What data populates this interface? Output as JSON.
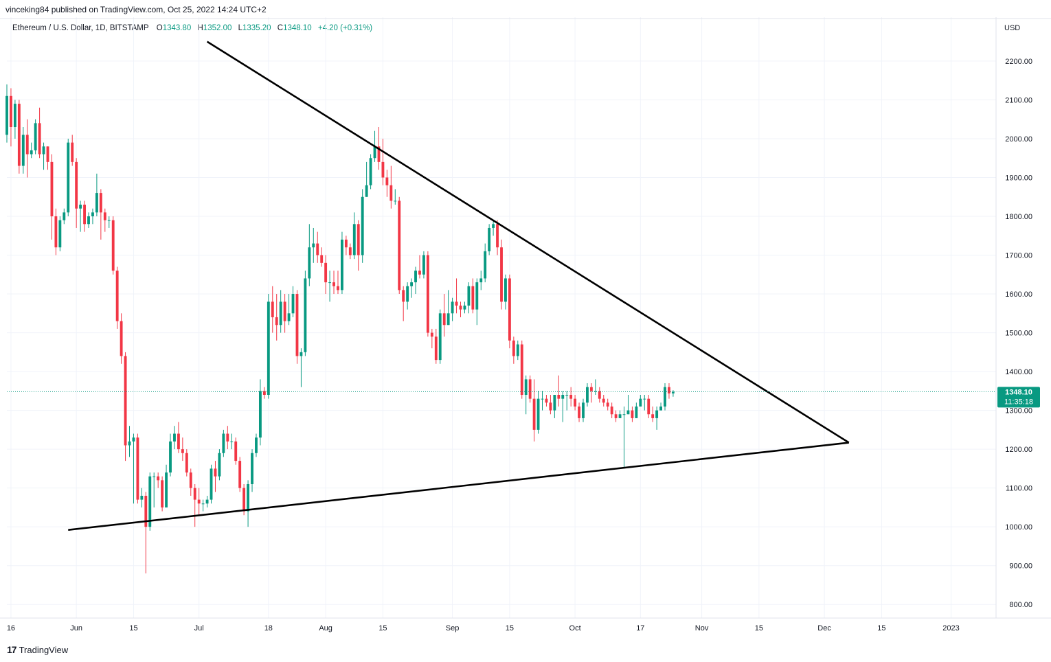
{
  "header": {
    "published_by": "vinceking84 published on TradingView.com, Oct 25, 2022 14:24 UTC+2",
    "symbol": "Ethereum / U.S. Dollar, 1D, BITSTAMP",
    "open_label": "O",
    "open": "1343.80",
    "high_label": "H",
    "high": "1352.00",
    "low_label": "L",
    "low": "1335.20",
    "close_label": "C",
    "close": "1348.10",
    "change": "+4.20 (+0.31%)",
    "currency": "USD"
  },
  "branding": {
    "logo": "17",
    "name": "TradingView"
  },
  "price_marker": {
    "price": "1348.10",
    "countdown": "11:35:18"
  },
  "colors": {
    "up": "#089981",
    "down": "#f23645",
    "trendline": "#000000",
    "grid": "#f0f3fa",
    "axis_text": "#131722"
  },
  "chart_data": {
    "type": "candlestick",
    "y_axis": {
      "ticks": [
        800,
        900,
        1000,
        1100,
        1200,
        1300,
        1400,
        1500,
        1600,
        1700,
        1800,
        1900,
        2000,
        2100,
        2200
      ],
      "ylim": [
        765,
        2260
      ]
    },
    "x_axis": {
      "ticks": [
        {
          "label": "16",
          "date": "2022-05-16"
        },
        {
          "label": "Jun",
          "date": "2022-06-01"
        },
        {
          "label": "15",
          "date": "2022-06-15"
        },
        {
          "label": "Jul",
          "date": "2022-07-01"
        },
        {
          "label": "18",
          "date": "2022-07-18"
        },
        {
          "label": "Aug",
          "date": "2022-08-01"
        },
        {
          "label": "15",
          "date": "2022-08-15"
        },
        {
          "label": "Sep",
          "date": "2022-09-01"
        },
        {
          "label": "15",
          "date": "2022-09-15"
        },
        {
          "label": "Oct",
          "date": "2022-10-01"
        },
        {
          "label": "17",
          "date": "2022-10-17"
        },
        {
          "label": "Nov",
          "date": "2022-11-01"
        },
        {
          "label": "15",
          "date": "2022-11-15"
        },
        {
          "label": "Dec",
          "date": "2022-12-01"
        },
        {
          "label": "15",
          "date": "2022-12-15"
        },
        {
          "label": "2023",
          "date": "2023-01-01"
        }
      ],
      "range": [
        "2022-05-15",
        "2023-01-12"
      ]
    },
    "candles": [
      [
        "2022-05-15",
        2010,
        2110,
        2140,
        1990
      ],
      [
        "2022-05-16",
        2110,
        2030,
        2130,
        1980
      ],
      [
        "2022-05-17",
        2030,
        2090,
        2100,
        2000
      ],
      [
        "2022-05-18",
        2090,
        1930,
        2100,
        1910
      ],
      [
        "2022-05-19",
        1930,
        2010,
        2030,
        1910
      ],
      [
        "2022-05-20",
        2010,
        1960,
        2050,
        1900
      ],
      [
        "2022-05-21",
        1960,
        1970,
        1990,
        1950
      ],
      [
        "2022-05-22",
        1970,
        2040,
        2050,
        1960
      ],
      [
        "2022-05-23",
        2040,
        1960,
        2080,
        1950
      ],
      [
        "2022-05-24",
        1960,
        1980,
        1990,
        1920
      ],
      [
        "2022-05-25",
        1980,
        1940,
        1980,
        1920
      ],
      [
        "2022-05-26",
        1940,
        1800,
        1960,
        1740
      ],
      [
        "2022-05-27",
        1800,
        1720,
        1820,
        1700
      ],
      [
        "2022-05-28",
        1720,
        1790,
        1800,
        1710
      ],
      [
        "2022-05-29",
        1790,
        1810,
        1820,
        1780
      ],
      [
        "2022-05-30",
        1810,
        1990,
        2000,
        1800
      ],
      [
        "2022-05-31",
        1990,
        1940,
        2010,
        1930
      ],
      [
        "2022-06-01",
        1940,
        1820,
        1950,
        1770
      ],
      [
        "2022-06-02",
        1820,
        1830,
        1840,
        1760
      ],
      [
        "2022-06-03",
        1830,
        1780,
        1840,
        1760
      ],
      [
        "2022-06-04",
        1780,
        1800,
        1810,
        1770
      ],
      [
        "2022-06-05",
        1800,
        1810,
        1820,
        1780
      ],
      [
        "2022-06-06",
        1810,
        1860,
        1910,
        1800
      ],
      [
        "2022-06-07",
        1860,
        1810,
        1870,
        1740
      ],
      [
        "2022-06-08",
        1810,
        1790,
        1820,
        1760
      ],
      [
        "2022-06-09",
        1790,
        1790,
        1800,
        1770
      ],
      [
        "2022-06-10",
        1790,
        1660,
        1800,
        1650
      ],
      [
        "2022-06-11",
        1660,
        1530,
        1670,
        1510
      ],
      [
        "2022-06-12",
        1530,
        1440,
        1550,
        1420
      ],
      [
        "2022-06-13",
        1440,
        1210,
        1450,
        1170
      ],
      [
        "2022-06-14",
        1210,
        1220,
        1260,
        1180
      ],
      [
        "2022-06-15",
        1220,
        1230,
        1240,
        1060
      ],
      [
        "2022-06-16",
        1230,
        1070,
        1240,
        1060
      ],
      [
        "2022-06-17",
        1070,
        1080,
        1100,
        1050
      ],
      [
        "2022-06-18",
        1080,
        1000,
        1090,
        880
      ],
      [
        "2022-06-19",
        1000,
        1130,
        1140,
        990
      ],
      [
        "2022-06-20",
        1130,
        1130,
        1140,
        1050
      ],
      [
        "2022-06-21",
        1130,
        1120,
        1140,
        1100
      ],
      [
        "2022-06-22",
        1120,
        1050,
        1130,
        1040
      ],
      [
        "2022-06-23",
        1050,
        1140,
        1160,
        1050
      ],
      [
        "2022-06-24",
        1140,
        1220,
        1240,
        1130
      ],
      [
        "2022-06-25",
        1220,
        1240,
        1260,
        1200
      ],
      [
        "2022-06-26",
        1240,
        1200,
        1270,
        1190
      ],
      [
        "2022-06-27",
        1200,
        1190,
        1230,
        1170
      ],
      [
        "2022-06-28",
        1190,
        1140,
        1200,
        1130
      ],
      [
        "2022-06-29",
        1140,
        1100,
        1150,
        1080
      ],
      [
        "2022-06-30",
        1100,
        1070,
        1110,
        1000
      ],
      [
        "2022-07-01",
        1070,
        1060,
        1100,
        1030
      ],
      [
        "2022-07-02",
        1060,
        1060,
        1070,
        1040
      ],
      [
        "2022-07-03",
        1060,
        1070,
        1080,
        1050
      ],
      [
        "2022-07-04",
        1070,
        1150,
        1160,
        1060
      ],
      [
        "2022-07-05",
        1150,
        1130,
        1170,
        1090
      ],
      [
        "2022-07-06",
        1130,
        1190,
        1200,
        1120
      ],
      [
        "2022-07-07",
        1190,
        1240,
        1250,
        1180
      ],
      [
        "2022-07-08",
        1240,
        1220,
        1260,
        1200
      ],
      [
        "2022-07-09",
        1220,
        1220,
        1240,
        1200
      ],
      [
        "2022-07-10",
        1220,
        1170,
        1230,
        1160
      ],
      [
        "2022-07-11",
        1170,
        1100,
        1180,
        1090
      ],
      [
        "2022-07-12",
        1100,
        1040,
        1110,
        1030
      ],
      [
        "2022-07-13",
        1040,
        1110,
        1120,
        1000
      ],
      [
        "2022-07-14",
        1110,
        1190,
        1200,
        1090
      ],
      [
        "2022-07-15",
        1190,
        1230,
        1240,
        1180
      ],
      [
        "2022-07-16",
        1230,
        1350,
        1380,
        1210
      ],
      [
        "2022-07-17",
        1350,
        1340,
        1360,
        1330
      ],
      [
        "2022-07-18",
        1340,
        1580,
        1600,
        1330
      ],
      [
        "2022-07-19",
        1580,
        1540,
        1620,
        1500
      ],
      [
        "2022-07-20",
        1540,
        1520,
        1600,
        1480
      ],
      [
        "2022-07-21",
        1520,
        1580,
        1610,
        1500
      ],
      [
        "2022-07-22",
        1580,
        1530,
        1600,
        1500
      ],
      [
        "2022-07-23",
        1530,
        1550,
        1600,
        1520
      ],
      [
        "2022-07-24",
        1550,
        1600,
        1620,
        1540
      ],
      [
        "2022-07-25",
        1600,
        1440,
        1610,
        1420
      ],
      [
        "2022-07-26",
        1440,
        1450,
        1460,
        1360
      ],
      [
        "2022-07-27",
        1450,
        1640,
        1660,
        1440
      ],
      [
        "2022-07-28",
        1640,
        1720,
        1780,
        1620
      ],
      [
        "2022-07-29",
        1720,
        1730,
        1770,
        1680
      ],
      [
        "2022-07-30",
        1730,
        1700,
        1760,
        1680
      ],
      [
        "2022-07-31",
        1700,
        1680,
        1720,
        1670
      ],
      [
        "2022-08-01",
        1680,
        1630,
        1700,
        1600
      ],
      [
        "2022-08-02",
        1630,
        1630,
        1660,
        1580
      ],
      [
        "2022-08-03",
        1630,
        1620,
        1660,
        1600
      ],
      [
        "2022-08-04",
        1620,
        1610,
        1660,
        1600
      ],
      [
        "2022-08-05",
        1610,
        1740,
        1760,
        1600
      ],
      [
        "2022-08-06",
        1740,
        1720,
        1750,
        1700
      ],
      [
        "2022-08-07",
        1720,
        1700,
        1730,
        1690
      ],
      [
        "2022-08-08",
        1700,
        1780,
        1810,
        1690
      ],
      [
        "2022-08-09",
        1780,
        1700,
        1790,
        1660
      ],
      [
        "2022-08-10",
        1700,
        1850,
        1870,
        1680
      ],
      [
        "2022-08-11",
        1850,
        1880,
        1940,
        1850
      ],
      [
        "2022-08-12",
        1880,
        1950,
        1960,
        1870
      ],
      [
        "2022-08-13",
        1950,
        1980,
        2020,
        1940
      ],
      [
        "2022-08-14",
        1980,
        1940,
        2030,
        1920
      ],
      [
        "2022-08-15",
        1940,
        1900,
        2000,
        1880
      ],
      [
        "2022-08-16",
        1900,
        1880,
        1920,
        1850
      ],
      [
        "2022-08-17",
        1880,
        1840,
        1930,
        1820
      ],
      [
        "2022-08-18",
        1840,
        1840,
        1870,
        1830
      ],
      [
        "2022-08-19",
        1840,
        1610,
        1850,
        1600
      ],
      [
        "2022-08-20",
        1610,
        1580,
        1620,
        1530
      ],
      [
        "2022-08-21",
        1580,
        1620,
        1630,
        1560
      ],
      [
        "2022-08-22",
        1620,
        1630,
        1640,
        1590
      ],
      [
        "2022-08-23",
        1630,
        1660,
        1670,
        1600
      ],
      [
        "2022-08-24",
        1660,
        1650,
        1700,
        1640
      ],
      [
        "2022-08-25",
        1650,
        1700,
        1710,
        1640
      ],
      [
        "2022-08-26",
        1700,
        1500,
        1710,
        1490
      ],
      [
        "2022-08-27",
        1500,
        1490,
        1510,
        1460
      ],
      [
        "2022-08-28",
        1490,
        1430,
        1510,
        1420
      ],
      [
        "2022-08-29",
        1430,
        1550,
        1560,
        1420
      ],
      [
        "2022-08-30",
        1550,
        1520,
        1600,
        1490
      ],
      [
        "2022-08-31",
        1520,
        1550,
        1610,
        1520
      ],
      [
        "2022-09-01",
        1550,
        1580,
        1590,
        1530
      ],
      [
        "2022-09-02",
        1580,
        1570,
        1640,
        1550
      ],
      [
        "2022-09-03",
        1570,
        1560,
        1580,
        1540
      ],
      [
        "2022-09-04",
        1560,
        1570,
        1580,
        1550
      ],
      [
        "2022-09-05",
        1570,
        1620,
        1630,
        1550
      ],
      [
        "2022-09-06",
        1620,
        1560,
        1640,
        1550
      ],
      [
        "2022-09-07",
        1560,
        1630,
        1640,
        1520
      ],
      [
        "2022-09-08",
        1630,
        1640,
        1660,
        1610
      ],
      [
        "2022-09-09",
        1640,
        1710,
        1730,
        1630
      ],
      [
        "2022-09-10",
        1710,
        1770,
        1780,
        1700
      ],
      [
        "2022-09-11",
        1770,
        1780,
        1790,
        1750
      ],
      [
        "2022-09-12",
        1780,
        1720,
        1790,
        1700
      ],
      [
        "2022-09-13",
        1720,
        1580,
        1740,
        1560
      ],
      [
        "2022-09-14",
        1580,
        1640,
        1650,
        1560
      ],
      [
        "2022-09-15",
        1640,
        1480,
        1650,
        1460
      ],
      [
        "2022-09-16",
        1480,
        1440,
        1490,
        1420
      ],
      [
        "2022-09-17",
        1440,
        1470,
        1480,
        1430
      ],
      [
        "2022-09-18",
        1470,
        1340,
        1480,
        1330
      ],
      [
        "2022-09-19",
        1340,
        1380,
        1390,
        1290
      ],
      [
        "2022-09-20",
        1380,
        1330,
        1390,
        1320
      ],
      [
        "2022-09-21",
        1330,
        1250,
        1380,
        1220
      ],
      [
        "2022-09-22",
        1250,
        1330,
        1350,
        1240
      ],
      [
        "2022-09-23",
        1330,
        1330,
        1350,
        1300
      ],
      [
        "2022-09-24",
        1330,
        1320,
        1340,
        1310
      ],
      [
        "2022-09-25",
        1320,
        1300,
        1340,
        1290
      ],
      [
        "2022-09-26",
        1300,
        1340,
        1340,
        1280
      ],
      [
        "2022-09-27",
        1340,
        1330,
        1390,
        1310
      ],
      [
        "2022-09-28",
        1330,
        1340,
        1350,
        1270
      ],
      [
        "2022-09-29",
        1340,
        1340,
        1350,
        1300
      ],
      [
        "2022-09-30",
        1340,
        1330,
        1360,
        1310
      ],
      [
        "2022-10-01",
        1330,
        1310,
        1340,
        1300
      ],
      [
        "2022-10-02",
        1310,
        1280,
        1320,
        1270
      ],
      [
        "2022-10-03",
        1280,
        1320,
        1330,
        1270
      ],
      [
        "2022-10-04",
        1320,
        1360,
        1370,
        1310
      ],
      [
        "2022-10-05",
        1360,
        1350,
        1370,
        1320
      ],
      [
        "2022-10-06",
        1350,
        1350,
        1380,
        1340
      ],
      [
        "2022-10-07",
        1350,
        1330,
        1360,
        1320
      ],
      [
        "2022-10-08",
        1330,
        1320,
        1340,
        1310
      ],
      [
        "2022-10-09",
        1320,
        1310,
        1330,
        1300
      ],
      [
        "2022-10-10",
        1310,
        1290,
        1320,
        1280
      ],
      [
        "2022-10-11",
        1290,
        1280,
        1300,
        1270
      ],
      [
        "2022-10-12",
        1280,
        1290,
        1300,
        1280
      ],
      [
        "2022-10-13",
        1290,
        1290,
        1310,
        1150
      ],
      [
        "2022-10-14",
        1290,
        1300,
        1340,
        1290
      ],
      [
        "2022-10-15",
        1300,
        1280,
        1310,
        1270
      ],
      [
        "2022-10-16",
        1280,
        1310,
        1320,
        1280
      ],
      [
        "2022-10-17",
        1310,
        1330,
        1340,
        1310
      ],
      [
        "2022-10-18",
        1330,
        1330,
        1340,
        1300
      ],
      [
        "2022-10-19",
        1330,
        1290,
        1340,
        1280
      ],
      [
        "2022-10-20",
        1290,
        1280,
        1310,
        1270
      ],
      [
        "2022-10-21",
        1280,
        1300,
        1310,
        1250
      ],
      [
        "2022-10-22",
        1300,
        1310,
        1320,
        1300
      ],
      [
        "2022-10-23",
        1310,
        1360,
        1370,
        1300
      ],
      [
        "2022-10-24",
        1360,
        1343.8,
        1370,
        1330
      ],
      [
        "2022-10-25",
        1343.8,
        1348.1,
        1352,
        1335.2
      ]
    ],
    "trendlines": [
      {
        "start": {
          "date": "2022-07-03",
          "price": 2250
        },
        "end": {
          "date": "2022-12-07",
          "price": 1217
        }
      },
      {
        "start": {
          "date": "2022-05-30",
          "price": 992
        },
        "end": {
          "date": "2022-12-07",
          "price": 1217
        }
      }
    ]
  }
}
